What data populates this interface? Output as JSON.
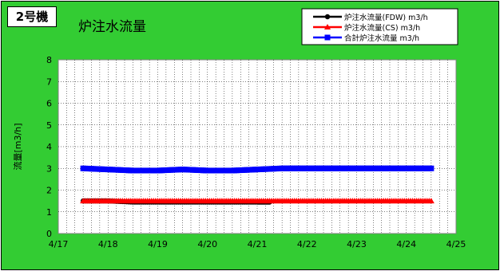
{
  "header": {
    "unit": "2号機",
    "title": "炉注水流量"
  },
  "colors": {
    "background": "#33cc33",
    "plot": "#ffffff",
    "series_fdw": "#000000",
    "series_cs": "#ff0000",
    "series_total": "#0000ff"
  },
  "chart_data": {
    "type": "line",
    "title": "炉注水流量",
    "xlabel": "",
    "ylabel": "流量[m3/h]",
    "ylim": [
      0,
      8
    ],
    "yticks": [
      "0",
      "1",
      "2",
      "3",
      "4",
      "5",
      "6",
      "7",
      "8"
    ],
    "xlim": [
      "4/17",
      "4/25"
    ],
    "xticks": [
      "4/17",
      "4/18",
      "4/19",
      "4/20",
      "4/21",
      "4/22",
      "4/23",
      "4/24",
      "4/25"
    ],
    "grid": true,
    "legend_position": "top-right",
    "series": [
      {
        "name": "炉注水流量(FDW) m3/h",
        "color": "#000000",
        "marker": "circle",
        "x": [
          "4/17 12:00",
          "4/18 00:00",
          "4/18 12:00",
          "4/19 00:00",
          "4/19 12:00",
          "4/20 00:00",
          "4/20 12:00",
          "4/21 00:00",
          "4/21 06:00"
        ],
        "y": [
          1.5,
          1.5,
          1.45,
          1.45,
          1.45,
          1.45,
          1.45,
          1.45,
          1.45
        ]
      },
      {
        "name": "炉注水流量(CS) m3/h",
        "color": "#ff0000",
        "marker": "triangle",
        "x": [
          "4/17 12:00",
          "4/18 00:00",
          "4/18 12:00",
          "4/19 00:00",
          "4/19 12:00",
          "4/20 00:00",
          "4/20 12:00",
          "4/21 00:00",
          "4/21 12:00",
          "4/22 00:00",
          "4/22 12:00",
          "4/23 00:00",
          "4/23 12:00",
          "4/24 00:00",
          "4/24 12:00"
        ],
        "y": [
          1.5,
          1.5,
          1.5,
          1.5,
          1.5,
          1.5,
          1.5,
          1.5,
          1.5,
          1.5,
          1.5,
          1.5,
          1.5,
          1.5,
          1.5
        ]
      },
      {
        "name": "合計炉注水流量 m3/h",
        "color": "#0000ff",
        "marker": "square",
        "x": [
          "4/17 12:00",
          "4/18 00:00",
          "4/18 12:00",
          "4/19 00:00",
          "4/19 12:00",
          "4/20 00:00",
          "4/20 12:00",
          "4/21 00:00",
          "4/21 12:00",
          "4/22 00:00",
          "4/22 12:00",
          "4/23 00:00",
          "4/23 12:00",
          "4/24 00:00",
          "4/24 12:00"
        ],
        "y": [
          3.0,
          2.95,
          2.9,
          2.9,
          2.95,
          2.9,
          2.9,
          2.95,
          3.0,
          3.0,
          3.0,
          3.0,
          3.0,
          3.0,
          3.0
        ]
      }
    ]
  }
}
